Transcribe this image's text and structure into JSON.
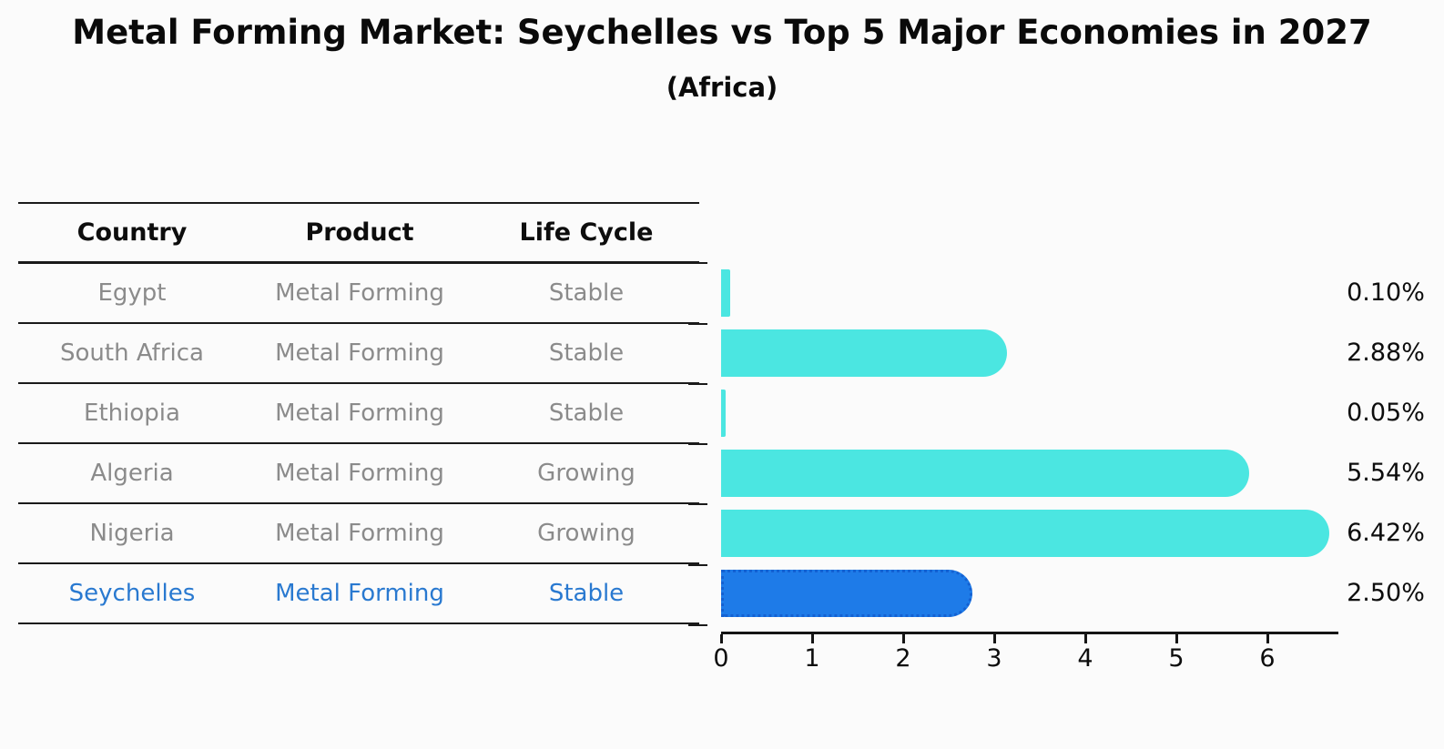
{
  "title": "Metal Forming Market: Seychelles vs Top 5 Major Economies in 2027",
  "subtitle": "(Africa)",
  "table": {
    "headers": [
      "Country",
      "Product",
      "Life Cycle"
    ],
    "rows": [
      {
        "country": "Egypt",
        "product": "Metal Forming",
        "life_cycle": "Stable",
        "value_label": "0.10%",
        "highlighted": false
      },
      {
        "country": "South Africa",
        "product": "Metal Forming",
        "life_cycle": "Stable",
        "value_label": "2.88%",
        "highlighted": false
      },
      {
        "country": "Ethiopia",
        "product": "Metal Forming",
        "life_cycle": "Stable",
        "value_label": "0.05%",
        "highlighted": false
      },
      {
        "country": "Algeria",
        "product": "Metal Forming",
        "life_cycle": "Growing",
        "value_label": "5.54%",
        "highlighted": false
      },
      {
        "country": "Nigeria",
        "product": "Metal Forming",
        "life_cycle": "Growing",
        "value_label": "6.42%",
        "highlighted": false
      },
      {
        "country": "Seychelles",
        "product": "Metal Forming",
        "life_cycle": "Stable",
        "value_label": "2.50%",
        "highlighted": true
      }
    ]
  },
  "chart_data": {
    "type": "bar",
    "orientation": "horizontal",
    "title": "Metal Forming Market: Seychelles vs Top 5 Major Economies in 2027",
    "subtitle": "(Africa)",
    "categories": [
      "Egypt",
      "South Africa",
      "Ethiopia",
      "Algeria",
      "Nigeria",
      "Seychelles"
    ],
    "values": [
      0.1,
      2.88,
      0.05,
      5.54,
      6.42,
      2.5
    ],
    "value_labels": [
      "0.10%",
      "2.88%",
      "0.05%",
      "5.54%",
      "6.42%",
      "2.50%"
    ],
    "xlabel": "",
    "ylabel": "",
    "xlim": [
      0,
      6.78
    ],
    "x_ticks": [
      "0",
      "1",
      "2",
      "3",
      "4",
      "5",
      "6"
    ],
    "grid": false,
    "legend": false,
    "bar_color": "#4BE6E1",
    "highlight_color": "#1E7BE8",
    "highlight_border_color": "#1461D2",
    "highlight_index": 5,
    "highlight_text_color": "#2979D0"
  }
}
